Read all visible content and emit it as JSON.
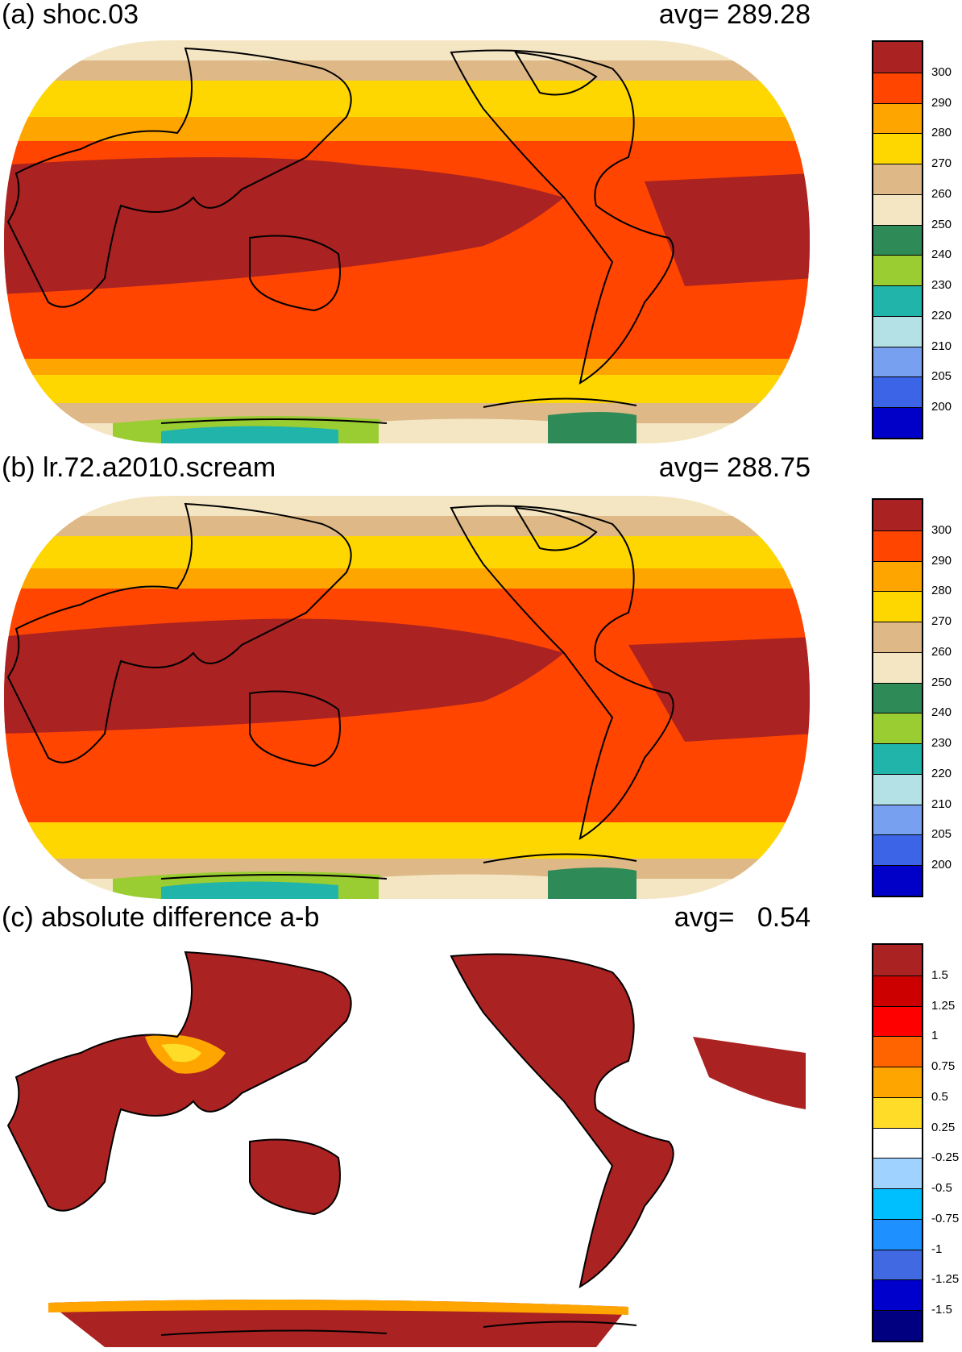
{
  "panels": [
    {
      "id": "a",
      "title": "(a) shoc.03",
      "avg_label": "avg=",
      "avg_value": "289.28",
      "colorbar": {
        "colors": [
          "#0000c8",
          "#3c64e6",
          "#78a0f0",
          "#b4e1e6",
          "#20b4aa",
          "#9acd32",
          "#2e8b57",
          "#f5e6c3",
          "#deb887",
          "#ffd700",
          "#ffa500",
          "#ff4500",
          "#aa2222"
        ],
        "labels": [
          "200",
          "205",
          "210",
          "220",
          "230",
          "240",
          "250",
          "260",
          "270",
          "280",
          "290",
          "300"
        ]
      }
    },
    {
      "id": "b",
      "title": "(b) lr.72.a2010.scream",
      "avg_label": "avg=",
      "avg_value": "288.75",
      "colorbar": {
        "colors": [
          "#0000c8",
          "#3c64e6",
          "#78a0f0",
          "#b4e1e6",
          "#20b4aa",
          "#9acd32",
          "#2e8b57",
          "#f5e6c3",
          "#deb887",
          "#ffd700",
          "#ffa500",
          "#ff4500",
          "#aa2222"
        ],
        "labels": [
          "200",
          "205",
          "210",
          "220",
          "230",
          "240",
          "250",
          "260",
          "270",
          "280",
          "290",
          "300"
        ]
      }
    },
    {
      "id": "c",
      "title": "(c) absolute difference a-b",
      "avg_label": "avg=",
      "avg_value": "0.54",
      "colorbar": {
        "colors": [
          "#000080",
          "#0000cd",
          "#4169e1",
          "#1e90ff",
          "#00bfff",
          "#a0d2ff",
          "#ffffff",
          "#ffdc28",
          "#ffa500",
          "#ff6400",
          "#ff0000",
          "#cd0000",
          "#aa2222"
        ],
        "labels": [
          "-1.5",
          "-1.25",
          "-1",
          "-0.75",
          "-0.5",
          "-0.25",
          "0.25",
          "0.5",
          "0.75",
          "1",
          "1.25",
          "1.5"
        ]
      }
    }
  ]
}
